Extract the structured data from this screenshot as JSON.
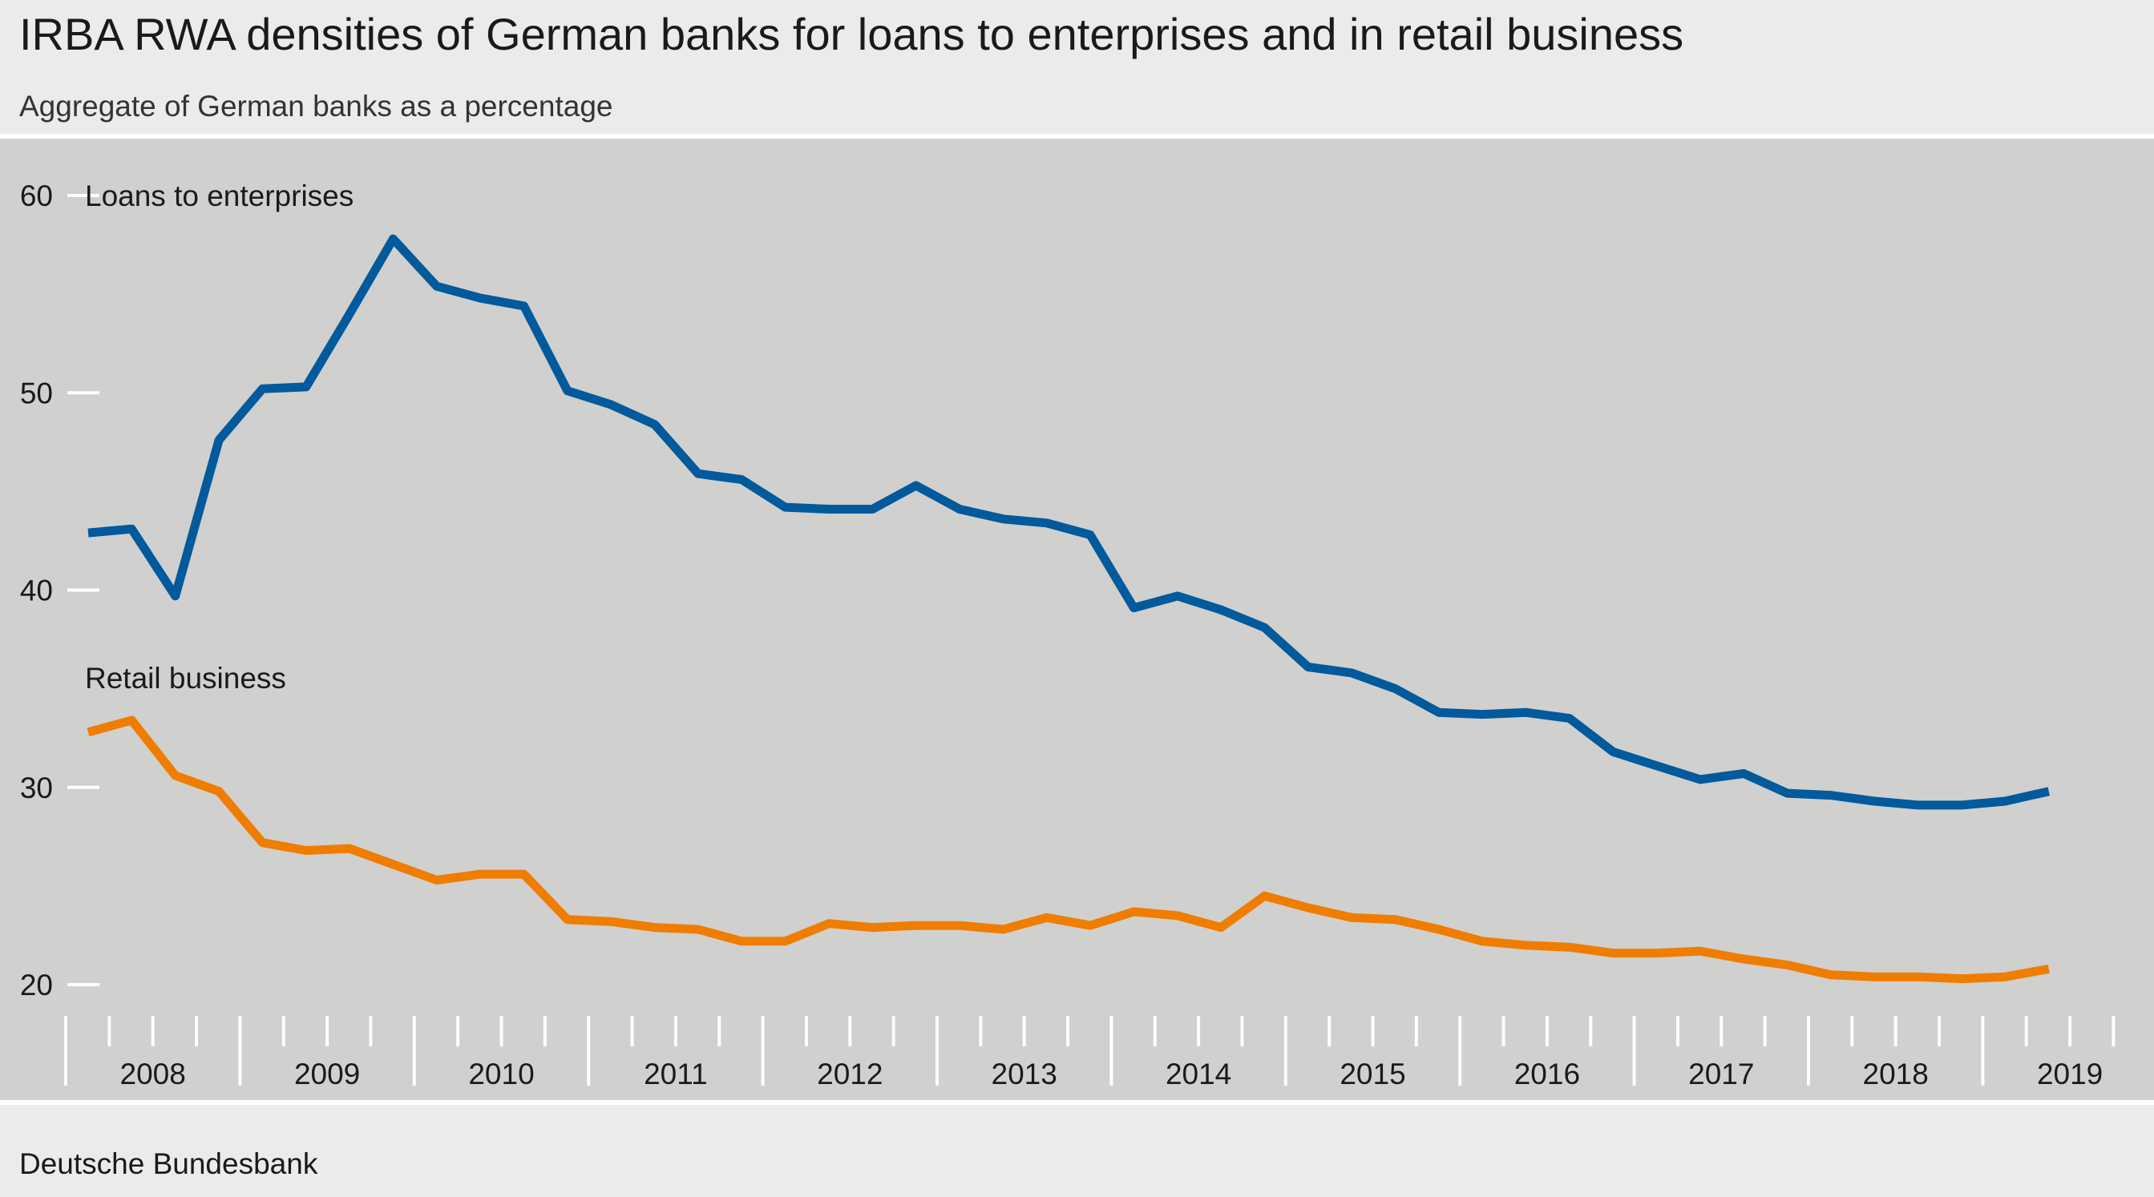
{
  "header": {
    "title": "IRBA RWA densities of German banks for loans to enterprises and in retail business",
    "subtitle": "Aggregate of German banks as a percentage"
  },
  "footer": {
    "source": "Deutsche Bundesbank"
  },
  "colors": {
    "enterprises": "#005a9c",
    "retail": "#ef7d00",
    "plot_bg": "#d0d0ce",
    "page_bg": "#ebebeb"
  },
  "chart_data": {
    "type": "line",
    "title": "IRBA RWA densities of German banks for loans to enterprises and in retail business",
    "subtitle": "Aggregate of German banks as a percentage",
    "xlabel": "",
    "ylabel": "",
    "ylim": [
      20,
      60
    ],
    "y_ticks": [
      20,
      30,
      40,
      50,
      60
    ],
    "x_tick_labels": [
      "2008",
      "2009",
      "2010",
      "2011",
      "2012",
      "2013",
      "2014",
      "2015",
      "2016",
      "2017",
      "2018",
      "2019"
    ],
    "grid": false,
    "x": [
      "2008-Q1",
      "2008-Q2",
      "2008-Q3",
      "2008-Q4",
      "2009-Q1",
      "2009-Q2",
      "2009-Q3",
      "2009-Q4",
      "2010-Q1",
      "2010-Q2",
      "2010-Q3",
      "2010-Q4",
      "2011-Q1",
      "2011-Q2",
      "2011-Q3",
      "2011-Q4",
      "2012-Q1",
      "2012-Q2",
      "2012-Q3",
      "2012-Q4",
      "2013-Q1",
      "2013-Q2",
      "2013-Q3",
      "2013-Q4",
      "2014-Q1",
      "2014-Q2",
      "2014-Q3",
      "2014-Q4",
      "2015-Q1",
      "2015-Q2",
      "2015-Q3",
      "2015-Q4",
      "2016-Q1",
      "2016-Q2",
      "2016-Q3",
      "2016-Q4",
      "2017-Q1",
      "2017-Q2",
      "2017-Q3",
      "2017-Q4",
      "2018-Q1",
      "2018-Q2",
      "2018-Q3",
      "2018-Q4",
      "2019-Q1",
      "2019-Q2"
    ],
    "series": [
      {
        "name": "Loans to enterprises",
        "values": [
          42.9,
          43.1,
          39.7,
          47.6,
          50.2,
          50.3,
          54.0,
          57.8,
          55.4,
          54.8,
          54.4,
          50.1,
          49.4,
          48.4,
          45.9,
          45.6,
          44.2,
          44.1,
          44.1,
          45.3,
          44.1,
          43.6,
          43.4,
          42.8,
          39.1,
          39.7,
          39.0,
          38.1,
          36.1,
          35.8,
          35.0,
          33.8,
          33.7,
          33.8,
          33.5,
          31.8,
          31.1,
          30.4,
          30.7,
          29.7,
          29.6,
          29.3,
          29.1,
          29.1,
          29.3,
          29.8
        ]
      },
      {
        "name": "Retail business",
        "values": [
          32.8,
          33.4,
          30.6,
          29.8,
          27.2,
          26.8,
          26.9,
          26.1,
          25.3,
          25.6,
          25.6,
          23.3,
          23.2,
          22.9,
          22.8,
          22.2,
          22.2,
          23.1,
          22.9,
          23.0,
          23.0,
          22.8,
          23.4,
          23.0,
          23.7,
          23.5,
          22.9,
          24.5,
          23.9,
          23.4,
          23.3,
          22.8,
          22.2,
          22.0,
          21.9,
          21.6,
          21.6,
          21.7,
          21.3,
          21.0,
          20.5,
          20.4,
          20.4,
          20.3,
          20.4,
          20.8
        ]
      }
    ]
  }
}
